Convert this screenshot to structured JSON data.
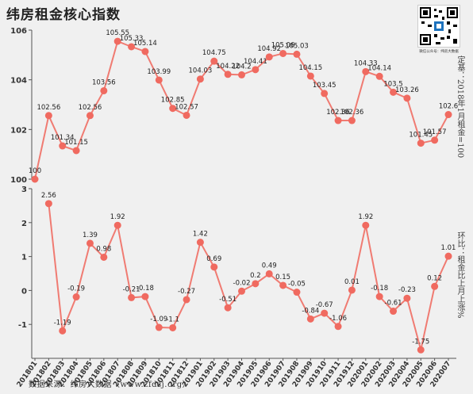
{
  "title": "纬房租金核心指数",
  "qr_caption": "微信公众号：纬房大数据",
  "source": "数据来源：纬房大数据（www.zfdsj.org）",
  "colors": {
    "line": "#f07b72",
    "marker": "#f06a60",
    "background": "#f0f0f0"
  },
  "chart_data": [
    {
      "type": "line",
      "ylabel": "定基：2018年1月租金=100",
      "ylim": [
        100,
        106
      ],
      "yticks": [
        "100",
        "102",
        "104",
        "106"
      ],
      "grid": false,
      "categories": [
        "201801",
        "201802",
        "201803",
        "201804",
        "201805",
        "201806",
        "201807",
        "201808",
        "201809",
        "201810",
        "201811",
        "201812",
        "201901",
        "201902",
        "201903",
        "201904",
        "201905",
        "201906",
        "201907",
        "201908",
        "201909",
        "201910",
        "201911",
        "201912",
        "202001",
        "202002",
        "202003",
        "202004",
        "202005",
        "202006",
        "202007"
      ],
      "values": [
        100,
        102.56,
        101.34,
        101.15,
        102.56,
        103.56,
        105.55,
        105.33,
        105.14,
        103.99,
        102.85,
        102.57,
        104.03,
        104.75,
        104.22,
        104.2,
        104.41,
        104.92,
        105.06,
        105.03,
        104.15,
        103.45,
        102.36,
        102.36,
        104.33,
        104.14,
        103.5,
        103.26,
        101.45,
        101.57,
        102.6
      ],
      "labels": [
        "100",
        "102.56",
        "101.34",
        "101.15",
        "102.56",
        "103.56",
        "105.55",
        "105.33",
        "105.14",
        "103.99",
        "102.85",
        "102.57",
        "104.03",
        "104.75",
        "104.22",
        "104.2",
        "104.41",
        "104.92",
        "105.06",
        "105.03",
        "104.15",
        "103.45",
        "102.36",
        "102.36",
        "104.33",
        "104.14",
        "103.5",
        "103.26",
        "101.45",
        "101.57",
        "102.6"
      ]
    },
    {
      "type": "line",
      "ylabel": "环比：租金比上月上涨%",
      "ylim": [
        -2,
        3
      ],
      "yticks": [
        "-1",
        "0",
        "1",
        "2",
        "3"
      ],
      "grid": false,
      "categories": [
        "201801",
        "201802",
        "201803",
        "201804",
        "201805",
        "201806",
        "201807",
        "201808",
        "201809",
        "201810",
        "201811",
        "201812",
        "201901",
        "201902",
        "201903",
        "201904",
        "201905",
        "201906",
        "201907",
        "201908",
        "201909",
        "201910",
        "201911",
        "201912",
        "202001",
        "202002",
        "202003",
        "202004",
        "202005",
        "202006",
        "202007"
      ],
      "x_start_index": 1,
      "values": [
        2.56,
        -1.19,
        -0.19,
        1.39,
        0.98,
        1.92,
        -0.21,
        -0.18,
        -1.09,
        -1.1,
        -0.27,
        1.42,
        0.69,
        -0.51,
        -0.02,
        0.2,
        0.49,
        0.15,
        -0.05,
        -0.84,
        -0.67,
        -1.06,
        0.01,
        1.92,
        -0.18,
        -0.61,
        -0.23,
        -1.75,
        0.12,
        1.01
      ],
      "labels": [
        "2.56",
        "-1.19",
        "-0.19",
        "1.39",
        "0.98",
        "1.92",
        "-0.21",
        "-0.18",
        "-1.09",
        "-1.1",
        "-0.27",
        "1.42",
        "0.69",
        "-0.51",
        "-0.02",
        "0.2",
        "0.49",
        "0.15",
        "-0.05",
        "-0.84",
        "-0.67",
        "-1.06",
        "0.01",
        "1.92",
        "-0.18",
        "-0.61",
        "-0.23",
        "-1.75",
        "0.12",
        "1.01"
      ]
    }
  ]
}
